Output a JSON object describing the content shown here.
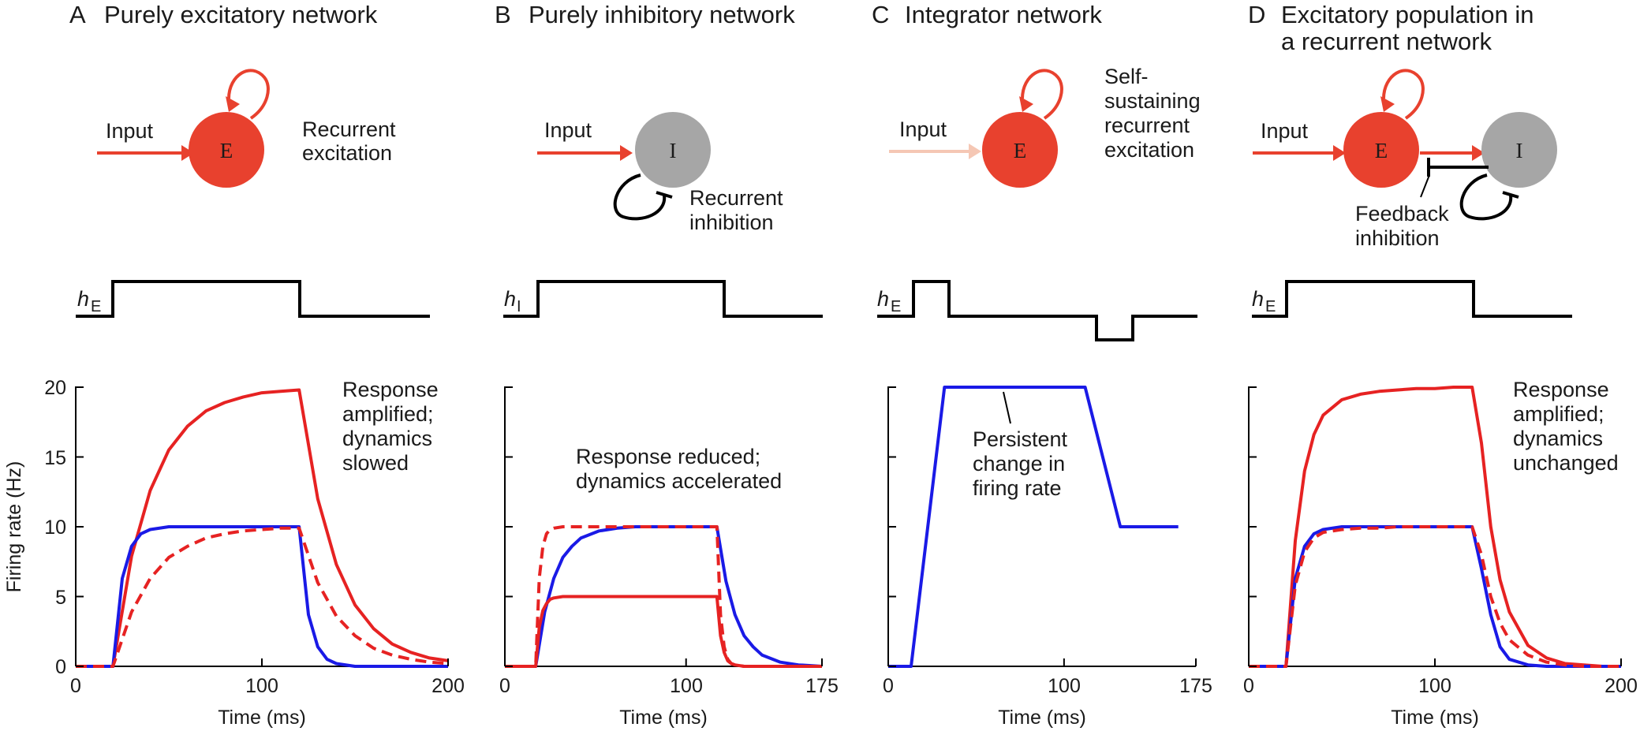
{
  "colors": {
    "excitatory": "#e8412e",
    "inhibitory": "#a6a6a6",
    "input_faded": "#f5c7b4",
    "blue": "#1a1ae6",
    "red": "#e62222",
    "black": "#000000"
  },
  "y_axis_label": "Firing rate (Hz)",
  "x_axis_label": "Time (ms)",
  "y_ticks": [
    "0",
    "5",
    "10",
    "15",
    "20"
  ],
  "panels": [
    {
      "letter": "A",
      "title_lines": [
        "Purely excitatory network"
      ],
      "diagram": {
        "input_label": "Input",
        "node_label": "E",
        "annotation_lines": [
          "Recurrent",
          "excitation"
        ]
      },
      "stimulus_label": {
        "main": "h",
        "sub": "E"
      },
      "annotation_lines": [
        "Response",
        "amplified;",
        "dynamics",
        "slowed"
      ],
      "x_ticks": [
        "0",
        "100",
        "200"
      ]
    },
    {
      "letter": "B",
      "title_lines": [
        "Purely inhibitory network"
      ],
      "diagram": {
        "input_label": "Input",
        "node_label": "I",
        "annotation_lines": [
          "Recurrent",
          "inhibition"
        ]
      },
      "stimulus_label": {
        "main": "h",
        "sub": "I"
      },
      "annotation_lines": [
        "Response reduced;",
        "dynamics accelerated"
      ],
      "x_ticks": [
        "0",
        "100",
        "175"
      ]
    },
    {
      "letter": "C",
      "title_lines": [
        "Integrator network"
      ],
      "diagram": {
        "input_label": "Input",
        "node_label": "E",
        "annotation_lines": [
          "Self-",
          "sustaining",
          "recurrent",
          "excitation"
        ]
      },
      "stimulus_label": {
        "main": "h",
        "sub": "E"
      },
      "annotation_lines": [
        "Persistent",
        "change in",
        "firing rate"
      ],
      "x_ticks": [
        "0",
        "100",
        "175"
      ]
    },
    {
      "letter": "D",
      "title_lines": [
        "Excitatory population in",
        "a recurrent network"
      ],
      "diagram": {
        "input_label": "Input",
        "node_label": "E",
        "node2_label": "I",
        "annotation_lines": [
          "Feedback",
          "inhibition"
        ]
      },
      "stimulus_label": {
        "main": "h",
        "sub": "E"
      },
      "annotation_lines": [
        "Response",
        "amplified;",
        "dynamics",
        "unchanged"
      ],
      "x_ticks": [
        "0",
        "100",
        "200"
      ]
    }
  ],
  "chart_data": [
    {
      "type": "line",
      "panel": "A",
      "xlim": [
        0,
        200
      ],
      "ylim": [
        0,
        20
      ],
      "xlabel": "Time (ms)",
      "ylabel": "Firing rate (Hz)",
      "stimulus": {
        "on": 20,
        "off": 120
      },
      "series": [
        {
          "color": "red",
          "style": "solid",
          "x": [
            0,
            20,
            30,
            40,
            50,
            60,
            70,
            80,
            90,
            100,
            110,
            120,
            130,
            140,
            150,
            160,
            170,
            180,
            190,
            200
          ],
          "y": [
            0,
            0,
            7.9,
            12.6,
            15.5,
            17.2,
            18.3,
            18.9,
            19.3,
            19.6,
            19.7,
            19.8,
            12.0,
            7.3,
            4.4,
            2.7,
            1.6,
            1.0,
            0.6,
            0.4
          ]
        },
        {
          "color": "blue",
          "style": "solid",
          "x": [
            0,
            20,
            25,
            30,
            35,
            40,
            50,
            60,
            70,
            80,
            90,
            100,
            110,
            120,
            125,
            130,
            135,
            140,
            150,
            160,
            170,
            180,
            190,
            200
          ],
          "y": [
            0,
            0,
            6.3,
            8.6,
            9.5,
            9.8,
            10.0,
            10.0,
            10.0,
            10.0,
            10.0,
            10.0,
            10.0,
            10.0,
            3.7,
            1.4,
            0.5,
            0.2,
            0,
            0,
            0,
            0,
            0,
            0
          ]
        },
        {
          "color": "red",
          "style": "dashed",
          "x": [
            0,
            20,
            30,
            40,
            50,
            60,
            70,
            80,
            90,
            100,
            110,
            120,
            130,
            140,
            150,
            160,
            170,
            180,
            190,
            200
          ],
          "y": [
            0,
            0,
            3.9,
            6.3,
            7.8,
            8.6,
            9.2,
            9.5,
            9.7,
            9.8,
            9.9,
            9.9,
            6.0,
            3.6,
            2.2,
            1.3,
            0.8,
            0.5,
            0.3,
            0.2
          ]
        }
      ]
    },
    {
      "type": "line",
      "panel": "B",
      "xlim": [
        0,
        175
      ],
      "ylim": [
        0,
        20
      ],
      "xlabel": "Time (ms)",
      "ylabel": "",
      "stimulus": {
        "on": 17,
        "off": 117
      },
      "series": [
        {
          "color": "blue",
          "style": "solid",
          "x": [
            0,
            17,
            22,
            27,
            32,
            37,
            42,
            52,
            62,
            72,
            82,
            92,
            102,
            112,
            117,
            122,
            127,
            132,
            137,
            142,
            152,
            162,
            175
          ],
          "y": [
            0,
            0,
            3.9,
            6.3,
            7.8,
            8.6,
            9.2,
            9.7,
            9.9,
            10.0,
            10.0,
            10.0,
            10.0,
            10.0,
            10.0,
            6.1,
            3.7,
            2.2,
            1.4,
            0.8,
            0.3,
            0.1,
            0
          ]
        },
        {
          "color": "red",
          "style": "dashed",
          "x": [
            0,
            17,
            19,
            21,
            23,
            25,
            27,
            32,
            37,
            47,
            57,
            67,
            77,
            87,
            97,
            107,
            117,
            119,
            121,
            123,
            125,
            127,
            132,
            142,
            175
          ],
          "y": [
            0,
            0,
            6.3,
            8.6,
            9.5,
            9.8,
            9.9,
            10.0,
            10.0,
            10.0,
            10.0,
            10.0,
            10.0,
            10.0,
            10.0,
            10.0,
            10.0,
            3.7,
            1.4,
            0.5,
            0.2,
            0.1,
            0,
            0,
            0
          ]
        },
        {
          "color": "red",
          "style": "solid",
          "x": [
            0,
            17,
            19,
            21,
            23,
            25,
            27,
            32,
            37,
            47,
            57,
            67,
            77,
            87,
            97,
            107,
            117,
            119,
            121,
            123,
            125,
            127,
            132,
            142,
            175
          ],
          "y": [
            0,
            0,
            2.8,
            4.0,
            4.5,
            4.8,
            4.9,
            5.0,
            5.0,
            5.0,
            5.0,
            5.0,
            5.0,
            5.0,
            5.0,
            5.0,
            5.0,
            2.2,
            1.0,
            0.4,
            0.2,
            0.1,
            0,
            0,
            0
          ]
        }
      ]
    },
    {
      "type": "line",
      "panel": "C",
      "xlim": [
        0,
        175
      ],
      "ylim": [
        0,
        20
      ],
      "xlabel": "Time (ms)",
      "ylabel": "",
      "stimulus": {
        "on": 13,
        "off": 32,
        "neg_on": 112,
        "neg_off": 132
      },
      "series": [
        {
          "color": "blue",
          "style": "solid",
          "x": [
            0,
            13,
            32,
            112,
            132,
            165
          ],
          "y": [
            0,
            0,
            20,
            20,
            10,
            10
          ]
        }
      ]
    },
    {
      "type": "line",
      "panel": "D",
      "xlim": [
        0,
        200
      ],
      "ylim": [
        0,
        20
      ],
      "xlabel": "Time (ms)",
      "ylabel": "",
      "stimulus": {
        "on": 20,
        "off": 120
      },
      "series": [
        {
          "color": "red",
          "style": "solid",
          "x": [
            0,
            20,
            25,
            30,
            35,
            40,
            50,
            60,
            70,
            80,
            90,
            100,
            110,
            120,
            125,
            130,
            135,
            140,
            150,
            160,
            170,
            180,
            190,
            200
          ],
          "y": [
            0,
            0,
            9.0,
            14.0,
            16.6,
            18.0,
            19.1,
            19.5,
            19.7,
            19.8,
            19.9,
            19.9,
            20.0,
            20.0,
            16.0,
            10.0,
            6.2,
            3.9,
            1.5,
            0.6,
            0.2,
            0.1,
            0,
            0
          ]
        },
        {
          "color": "blue",
          "style": "solid",
          "x": [
            0,
            20,
            25,
            30,
            35,
            40,
            50,
            60,
            70,
            80,
            90,
            100,
            110,
            120,
            125,
            130,
            135,
            140,
            150,
            160,
            170,
            180,
            190,
            200
          ],
          "y": [
            0,
            0,
            6.3,
            8.6,
            9.5,
            9.8,
            10.0,
            10.0,
            10.0,
            10.0,
            10.0,
            10.0,
            10.0,
            10.0,
            7.0,
            3.7,
            1.4,
            0.5,
            0.1,
            0,
            0,
            0,
            0,
            0
          ]
        },
        {
          "color": "red",
          "style": "dashed",
          "x": [
            0,
            20,
            25,
            30,
            35,
            40,
            50,
            60,
            70,
            80,
            90,
            100,
            110,
            120,
            125,
            130,
            135,
            140,
            150,
            160,
            170,
            180,
            190,
            200
          ],
          "y": [
            0,
            0,
            5.8,
            8.2,
            9.2,
            9.6,
            9.8,
            9.9,
            9.9,
            10.0,
            10.0,
            10.0,
            10.0,
            10.0,
            8.0,
            5.0,
            3.1,
            1.9,
            0.8,
            0.3,
            0.1,
            0,
            0,
            0
          ]
        }
      ]
    }
  ]
}
